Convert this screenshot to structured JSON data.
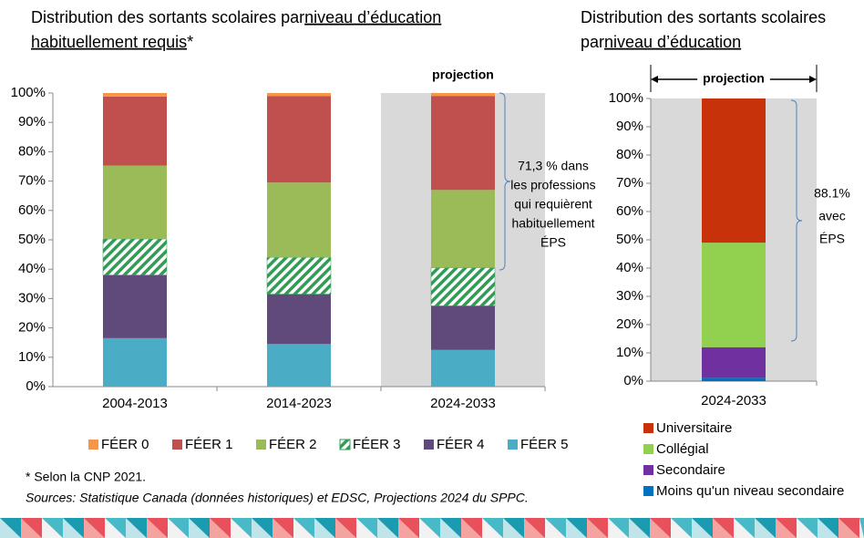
{
  "chart_data": [
    {
      "type": "stacked_bar",
      "title_parts": [
        {
          "text": "Distribution des sortants scolaires par "
        },
        {
          "text": "niveau d’éducation",
          "underline": true
        },
        {
          "text": "habituellement requis",
          "underline": true
        },
        {
          "text": "*"
        }
      ],
      "projection_label": "projection",
      "projection_index": 2,
      "categories": [
        "2004-2013",
        "2014-2023",
        "2024-2033"
      ],
      "series": [
        {
          "name": "FÉER 0",
          "color": "#f79646",
          "values": [
            1.2,
            1.0,
            1.0
          ]
        },
        {
          "name": "FÉER 1",
          "color": "#c0504d",
          "values": [
            23.5,
            29.5,
            32
          ]
        },
        {
          "name": "FÉER 2",
          "color": "#9bbb59",
          "values": [
            25,
            25.5,
            26.5
          ]
        },
        {
          "name": "FÉER 3",
          "color": "#2e9e55",
          "hatch": true,
          "values": [
            12.3,
            12.5,
            13
          ]
        },
        {
          "name": "FÉER 4",
          "color": "#604a7b",
          "values": [
            21.5,
            17,
            15
          ]
        },
        {
          "name": "FÉER 5",
          "color": "#4bacc6",
          "values": [
            16.5,
            14.5,
            12.5
          ]
        }
      ],
      "ylim": [
        0,
        100
      ],
      "yticks": [
        {
          "value": 0,
          "label": "0%"
        },
        {
          "value": 10,
          "label": "10%"
        },
        {
          "value": 20,
          "label": "20%"
        },
        {
          "value": 30,
          "label": "30%"
        },
        {
          "value": 40,
          "label": "40%"
        },
        {
          "value": 50,
          "label": "50%"
        },
        {
          "value": 60,
          "label": "60%"
        },
        {
          "value": 70,
          "label": "70%"
        },
        {
          "value": 80,
          "label": "80%"
        },
        {
          "value": 90,
          "label": "90%"
        },
        {
          "value": 100,
          "label": "100%"
        }
      ],
      "annotation_lines": [
        "71,3 % dans",
        "les professions",
        "qui requièrent",
        "habituellement",
        "ÉPS"
      ],
      "footnote": "* Selon la CNP 2021.",
      "sources": "Sources: Statistique Canada (données historiques) et EDSC, Projections 2024 du SPPC."
    },
    {
      "type": "stacked_bar",
      "title_parts": [
        {
          "text": "Distribution des sortants scolaires"
        },
        {
          "text": "par "
        },
        {
          "text": "niveau d’éducation",
          "underline": true
        }
      ],
      "projection_label": "projection",
      "projection_index": 0,
      "categories": [
        "2024-2033"
      ],
      "series": [
        {
          "name": "Universitaire",
          "color": "#c8320a",
          "values": [
            51
          ]
        },
        {
          "name": "Collégial",
          "color": "#92d050",
          "values": [
            37
          ]
        },
        {
          "name": "Secondaire",
          "color": "#7030a0",
          "values": [
            10.8
          ]
        },
        {
          "name": "Moins qu'un niveau secondaire",
          "color": "#0070c0",
          "values": [
            1.2
          ]
        }
      ],
      "ylim": [
        0,
        100
      ],
      "yticks": [
        {
          "value": 0,
          "label": "0%"
        },
        {
          "value": 10,
          "label": "10%"
        },
        {
          "value": 20,
          "label": "20%"
        },
        {
          "value": 30,
          "label": "30%"
        },
        {
          "value": 40,
          "label": "40%"
        },
        {
          "value": 50,
          "label": "50%"
        },
        {
          "value": 60,
          "label": "60%"
        },
        {
          "value": 70,
          "label": "70%"
        },
        {
          "value": 80,
          "label": "80%"
        },
        {
          "value": 90,
          "label": "90%"
        },
        {
          "value": 100,
          "label": "100%"
        }
      ],
      "annotation_lines": [
        "88.1%",
        "avec",
        "ÉPS"
      ]
    }
  ]
}
